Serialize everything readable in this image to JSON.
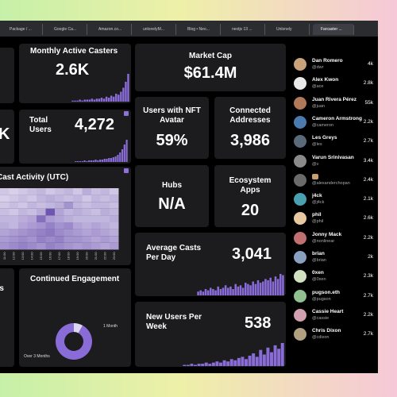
{
  "tabs": [
    "Package / ...",
    "Google Ca...",
    "Amazon.co...",
    "unlonelyM...",
    "Blog • Neo...",
    "nextjs 13 ...",
    "Unlonely",
    "Farcaster ..."
  ],
  "partial_left": {
    "top": "K",
    "bottom": "ts"
  },
  "monthly_active_casters": {
    "title": "Monthly Active Casters",
    "value": "2.6K",
    "bars": [
      1,
      1,
      1,
      2,
      1,
      2,
      2,
      2,
      3,
      2,
      3,
      3,
      4,
      3,
      5,
      4,
      6,
      5,
      8,
      7,
      10,
      14,
      20,
      28
    ]
  },
  "total_users": {
    "title": "Total Users",
    "value": "4,272",
    "bars": [
      1,
      1,
      1,
      1,
      2,
      1,
      2,
      2,
      2,
      3,
      2,
      3,
      3,
      4,
      4,
      5,
      5,
      6,
      7,
      9,
      12,
      16,
      22,
      28
    ]
  },
  "cast_activity": {
    "title": "Cast Activity (UTC)",
    "hours": [
      "11:00",
      "12:00",
      "13:00",
      "14:00",
      "15:00",
      "16:00",
      "17:00",
      "18:00",
      "19:00",
      "20:00",
      "21:00",
      "22:00",
      "23:00"
    ],
    "cells": [
      [
        0.2,
        0.15,
        0.2,
        0.25,
        0.3,
        0.2,
        0.25,
        0.3,
        0.2,
        0.35,
        0.25,
        0.3,
        0.2
      ],
      [
        0.15,
        0.2,
        0.25,
        0.2,
        0.3,
        0.35,
        0.3,
        0.25,
        0.3,
        0.2,
        0.3,
        0.25,
        0.3
      ],
      [
        0.2,
        0.25,
        0.2,
        0.3,
        0.25,
        0.3,
        0.35,
        0.5,
        0.3,
        0.25,
        0.3,
        0.3,
        0.25
      ],
      [
        0.25,
        0.2,
        0.3,
        0.25,
        0.35,
        0.85,
        0.4,
        0.3,
        0.35,
        0.3,
        0.25,
        0.35,
        0.3
      ],
      [
        0.3,
        0.3,
        0.35,
        0.4,
        0.7,
        0.45,
        0.4,
        0.35,
        0.3,
        0.3,
        0.3,
        0.3,
        0.35
      ],
      [
        0.35,
        0.3,
        0.4,
        0.45,
        0.5,
        0.6,
        0.5,
        0.55,
        0.4,
        0.35,
        0.4,
        0.35,
        0.3
      ],
      [
        0.4,
        0.45,
        0.5,
        0.55,
        0.6,
        0.65,
        0.55,
        0.5,
        0.45,
        0.4,
        0.45,
        0.4,
        0.35
      ],
      [
        0.45,
        0.5,
        0.55,
        0.5,
        0.6,
        0.55,
        0.6,
        0.5,
        0.5,
        0.45,
        0.4,
        0.45,
        0.4
      ],
      [
        0.5,
        0.55,
        0.6,
        0.55,
        0.5,
        0.6,
        0.55,
        0.5,
        0.45,
        0.5,
        0.45,
        0.4,
        0.45
      ]
    ]
  },
  "continued_engagement": {
    "title": "Continued Engagement",
    "slices": [
      {
        "name": "1 Month",
        "value": 8
      },
      {
        "name": "Over 3 Months",
        "value": 92
      }
    ]
  },
  "market_cap": {
    "title": "Market Cap",
    "value": "$61.4M"
  },
  "nft_avatar": {
    "title": "Users with NFT Avatar",
    "value": "59%"
  },
  "connected_addresses": {
    "title": "Connected Addresses",
    "value": "3,986"
  },
  "hubs": {
    "title": "Hubs",
    "value": "N/A"
  },
  "ecosystem_apps": {
    "title": "Ecosystem Apps",
    "value": "20"
  },
  "average_casts": {
    "title": "Average Casts Per Day",
    "value": "3,041",
    "bars": [
      3,
      4,
      3,
      5,
      4,
      6,
      5,
      4,
      7,
      5,
      6,
      8,
      6,
      7,
      5,
      9,
      7,
      8,
      6,
      10,
      9,
      8,
      11,
      9,
      12,
      10,
      11,
      13,
      12,
      14,
      11,
      15,
      13,
      17,
      16
    ]
  },
  "new_users": {
    "title": "New Users Per Week",
    "value": "538",
    "bars": [
      1,
      1,
      2,
      1,
      2,
      2,
      3,
      2,
      3,
      4,
      3,
      5,
      4,
      6,
      5,
      7,
      8,
      6,
      9,
      11,
      8,
      14,
      10,
      16,
      12,
      18,
      15,
      20
    ]
  },
  "users": [
    {
      "name": "Dan Romero",
      "handle": "@dwr",
      "followers": "4k"
    },
    {
      "name": "Alex Kwon",
      "handle": "@ace",
      "followers": "2.8k"
    },
    {
      "name": "Juan Rivera Pérez",
      "handle": "@juan",
      "followers": "55k"
    },
    {
      "name": "Cameron Armstrong",
      "handle": "@cameron",
      "followers": "2.2k"
    },
    {
      "name": "Les Greys",
      "handle": "@les",
      "followers": "2.7k"
    },
    {
      "name": "Varun Srinivasan",
      "handle": "@v",
      "followers": "3.4k"
    },
    {
      "name": null,
      "handle": "@alexanderchopan",
      "followers": "2.4k"
    },
    {
      "name": "j4ck",
      "handle": "@j4ck",
      "followers": "2.1k"
    },
    {
      "name": "phil",
      "handle": "@phil",
      "followers": "2.6k"
    },
    {
      "name": "Jonny Mack",
      "handle": "@nonlinear",
      "followers": "2.2k"
    },
    {
      "name": "brian",
      "handle": "@brian",
      "followers": "2k"
    },
    {
      "name": "0xen",
      "handle": "@0xen",
      "followers": "2.3k"
    },
    {
      "name": "pugson.eth",
      "handle": "@pugson",
      "followers": "2.7k"
    },
    {
      "name": "Cassie Heart",
      "handle": "@cassie",
      "followers": "2.2k"
    },
    {
      "name": "Chris Dixon",
      "handle": "@cdixon",
      "followers": "2.7k"
    }
  ]
}
